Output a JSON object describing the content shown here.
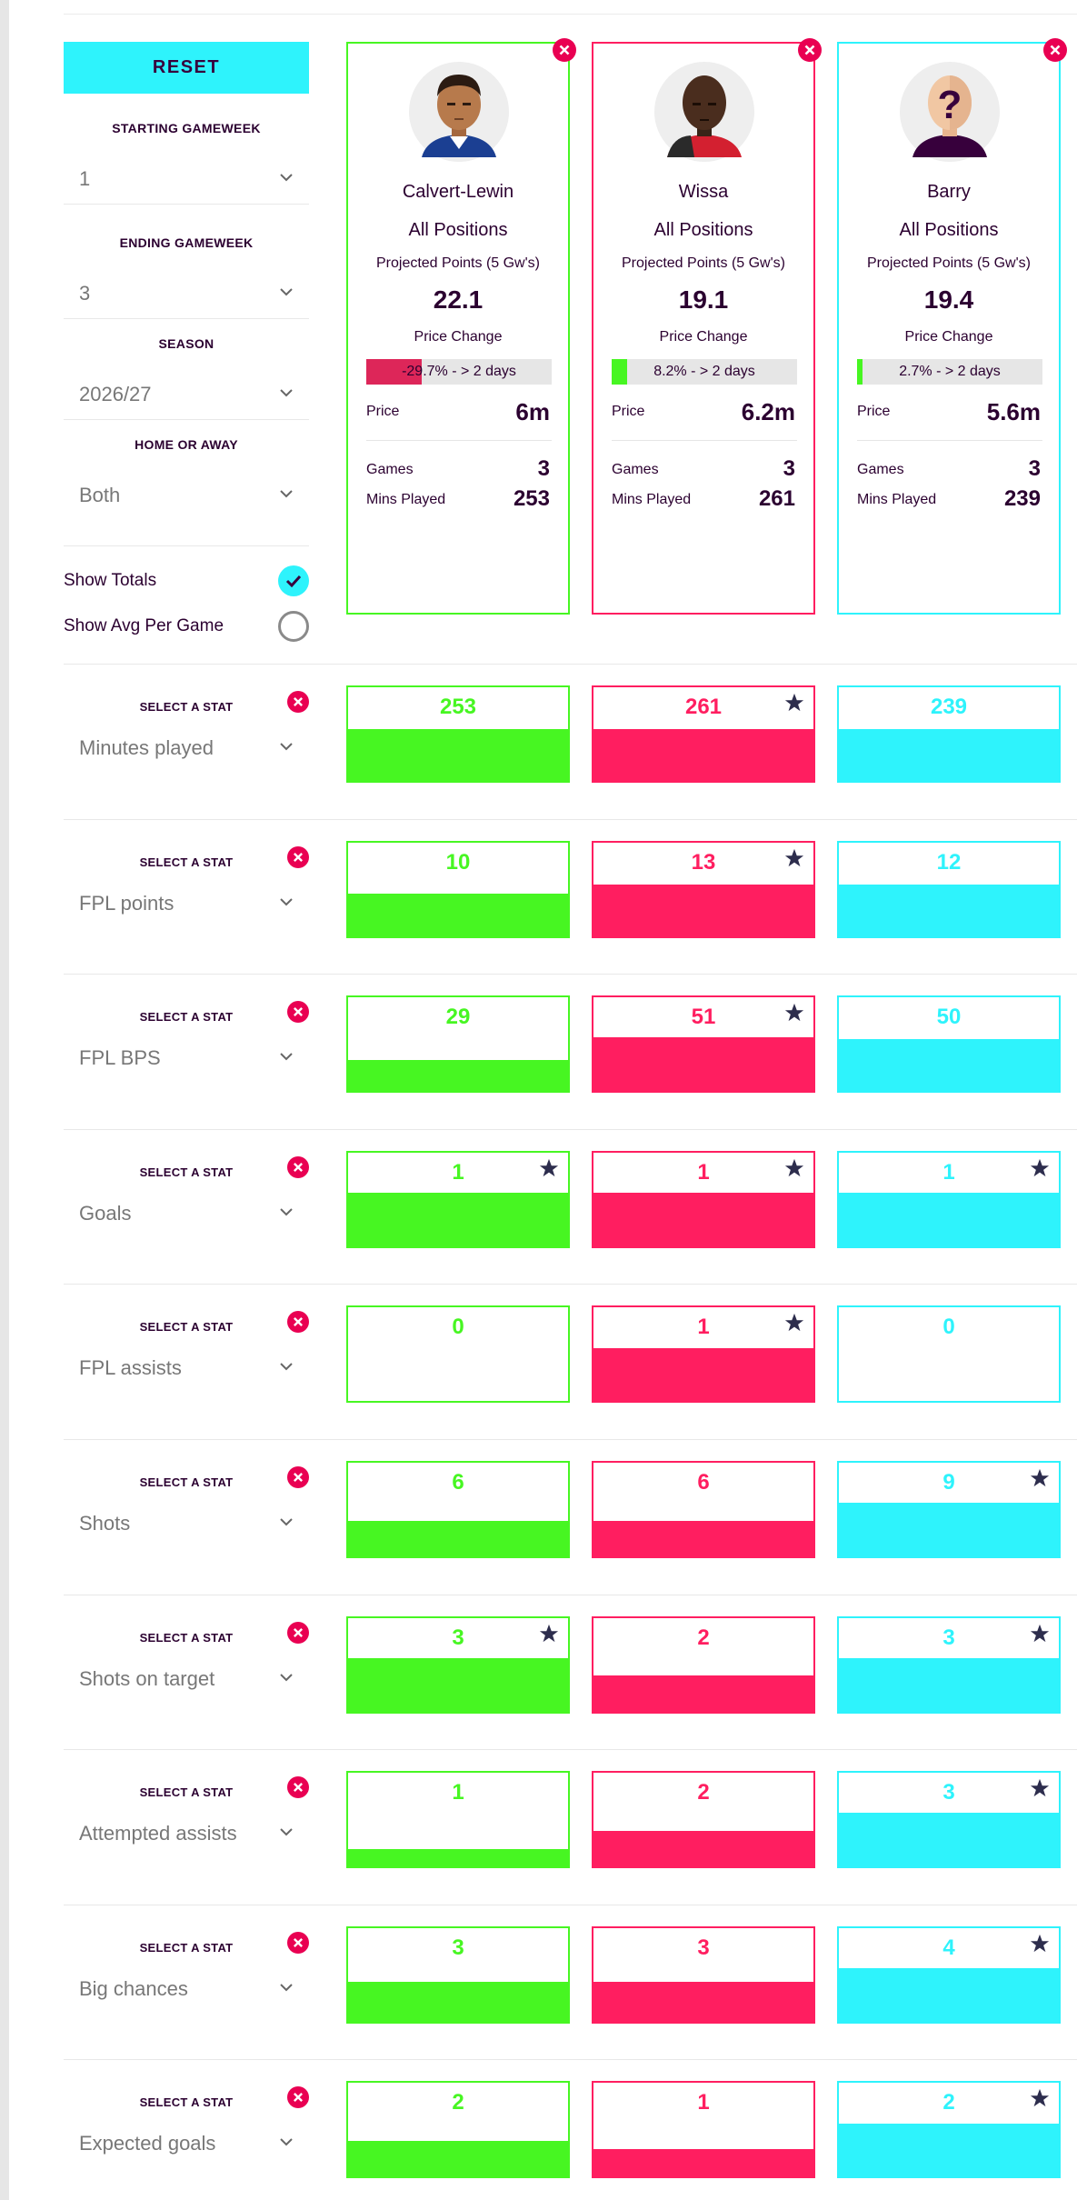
{
  "filters": {
    "reset_label": "RESET",
    "starting_gameweek": {
      "label": "STARTING GAMEWEEK",
      "value": "1"
    },
    "ending_gameweek": {
      "label": "ENDING GAMEWEEK",
      "value": "3"
    },
    "season": {
      "label": "SEASON",
      "value": "2026/27"
    },
    "home_or_away": {
      "label": "HOME OR AWAY",
      "value": "Both"
    },
    "show_totals": {
      "label": "Show Totals",
      "checked": true
    },
    "show_avg": {
      "label": "Show Avg Per Game",
      "checked": false
    }
  },
  "labels": {
    "projected": "Projected Points (5 Gw's)",
    "price_change": "Price Change",
    "price": "Price",
    "games": "Games",
    "mins_played": "Mins Played",
    "select_stat": "SELECT A STAT"
  },
  "players": [
    {
      "name": "Calvert-Lewin",
      "position": "All Positions",
      "projected": "22.1",
      "price_change_text": "-29.7% - > 2 days",
      "price_change_pct": -29.7,
      "price": "6m",
      "games": "3",
      "mins_played": "253",
      "color": "#47f622",
      "bar_color": "#dd2659"
    },
    {
      "name": "Wissa",
      "position": "All Positions",
      "projected": "19.1",
      "price_change_text": "8.2% - > 2 days",
      "price_change_pct": 8.2,
      "price": "6.2m",
      "games": "3",
      "mins_played": "261",
      "color": "#ff1e60",
      "bar_color": "#47f622"
    },
    {
      "name": "Barry",
      "position": "All Positions",
      "projected": "19.4",
      "price_change_text": "2.7% - > 2 days",
      "price_change_pct": 2.7,
      "price": "5.6m",
      "games": "3",
      "mins_played": "239",
      "color": "#2ef3fc",
      "bar_color": "#47f622"
    }
  ],
  "stats": [
    {
      "name": "Minutes played",
      "values": [
        "253",
        "261",
        "239"
      ],
      "fill": [
        0.55,
        0.55,
        0.55
      ],
      "best": [
        false,
        true,
        false
      ]
    },
    {
      "name": "FPL points",
      "values": [
        "10",
        "13",
        "12"
      ],
      "fill": [
        0.45,
        0.55,
        0.55
      ],
      "best": [
        false,
        true,
        false
      ]
    },
    {
      "name": "FPL BPS",
      "values": [
        "29",
        "51",
        "50"
      ],
      "fill": [
        0.33,
        0.57,
        0.56
      ],
      "best": [
        false,
        true,
        false
      ]
    },
    {
      "name": "Goals",
      "values": [
        "1",
        "1",
        "1"
      ],
      "fill": [
        0.57,
        0.57,
        0.57
      ],
      "best": [
        true,
        true,
        true
      ]
    },
    {
      "name": "FPL assists",
      "values": [
        "0",
        "1",
        "0"
      ],
      "fill": [
        0,
        0.57,
        0
      ],
      "best": [
        false,
        true,
        false
      ]
    },
    {
      "name": "Shots",
      "values": [
        "6",
        "6",
        "9"
      ],
      "fill": [
        0.38,
        0.38,
        0.57
      ],
      "best": [
        false,
        false,
        true
      ]
    },
    {
      "name": "Shots on target",
      "values": [
        "3",
        "2",
        "3"
      ],
      "fill": [
        0.57,
        0.38,
        0.57
      ],
      "best": [
        true,
        false,
        true
      ]
    },
    {
      "name": "Attempted assists",
      "values": [
        "1",
        "2",
        "3"
      ],
      "fill": [
        0.19,
        0.38,
        0.57
      ],
      "best": [
        false,
        false,
        true
      ]
    },
    {
      "name": "Big chances",
      "values": [
        "3",
        "3",
        "4"
      ],
      "fill": [
        0.43,
        0.43,
        0.57
      ],
      "best": [
        false,
        false,
        true
      ]
    },
    {
      "name": "Expected goals",
      "values": [
        "2",
        "1",
        "2"
      ],
      "fill": [
        0.38,
        0.3,
        0.57
      ],
      "best": [
        false,
        false,
        true
      ]
    }
  ]
}
